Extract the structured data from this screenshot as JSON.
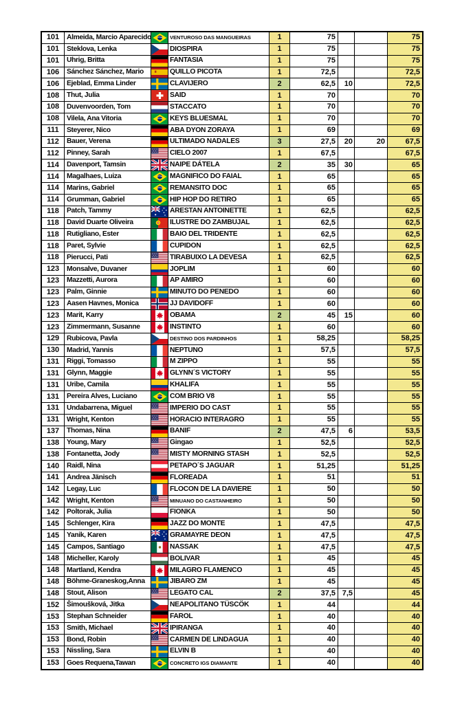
{
  "colors": {
    "tests_single_bg": "#F3E48F",
    "tests_multi_bg": "#C9D795",
    "total_bg": "#F3E88F",
    "border": "#000000",
    "text": "#0a0a0a",
    "page_bg": "#ffffff"
  },
  "table": {
    "rows": [
      {
        "rank": "101",
        "name": "Almeida, Marcio Aparecido",
        "country": "bra",
        "horse": "VENTUROSO DAS MANGUEIRAS",
        "tests": "1",
        "score": "75",
        "b1": "",
        "b2": "",
        "total": "75"
      },
      {
        "rank": "101",
        "name": "Steklova, Lenka",
        "country": "cze",
        "horse": "DIOSPIRA",
        "tests": "1",
        "score": "75",
        "b1": "",
        "b2": "",
        "total": "75"
      },
      {
        "rank": "101",
        "name": "Uhrig, Britta",
        "country": "ger",
        "horse": "FANTASIA",
        "tests": "1",
        "score": "75",
        "b1": "",
        "b2": "",
        "total": "75"
      },
      {
        "rank": "106",
        "name": "Sánchez Sánchez, Mario",
        "country": "esp",
        "horse": "QUILLO PICOTA",
        "tests": "1",
        "score": "72,5",
        "b1": "",
        "b2": "",
        "total": "72,5"
      },
      {
        "rank": "106",
        "name": "Ejeblad, Emma Linder",
        "country": "swe",
        "horse": "CLAVIJERO",
        "tests": "2",
        "score": "62,5",
        "b1": "10",
        "b2": "",
        "total": "72,5"
      },
      {
        "rank": "108",
        "name": "Thut, Julia",
        "country": "sui",
        "horse": "SAID",
        "tests": "1",
        "score": "70",
        "b1": "",
        "b2": "",
        "total": "70"
      },
      {
        "rank": "108",
        "name": "Duvenvoorden, Tom",
        "country": "ned",
        "horse": "STACCATO",
        "tests": "1",
        "score": "70",
        "b1": "",
        "b2": "",
        "total": "70"
      },
      {
        "rank": "108",
        "name": "Vilela, Ana Vitoria",
        "country": "bra",
        "horse": "KEYS BLUESMAL",
        "tests": "1",
        "score": "70",
        "b1": "",
        "b2": "",
        "total": "70"
      },
      {
        "rank": "111",
        "name": "Steyerer, Nico",
        "country": "ger",
        "horse": "ABA DYON ZORAYA",
        "tests": "1",
        "score": "69",
        "b1": "",
        "b2": "",
        "total": "69"
      },
      {
        "rank": "112",
        "name": "Bauer, Verena",
        "country": "ger",
        "horse": "ULTIMADO NADALES",
        "tests": "3",
        "score": "27,5",
        "b1": "20",
        "b2": "20",
        "total": "67,5"
      },
      {
        "rank": "112",
        "name": "Pinney, Sarah",
        "country": "usa",
        "horse": "CIELO 2007",
        "tests": "1",
        "score": "67,5",
        "b1": "",
        "b2": "",
        "total": "67,5"
      },
      {
        "rank": "114",
        "name": "Davenport, Tamsin",
        "country": "gbr",
        "horse": "NAIPE DÁTELA",
        "tests": "2",
        "score": "35",
        "b1": "30",
        "b2": "",
        "total": "65"
      },
      {
        "rank": "114",
        "name": "Magalhaes, Luiza",
        "country": "bra",
        "horse": "MAGNIFICO DO FAIAL",
        "tests": "1",
        "score": "65",
        "b1": "",
        "b2": "",
        "total": "65"
      },
      {
        "rank": "114",
        "name": "Marins, Gabriel",
        "country": "bra",
        "horse": "REMANSITO DOC",
        "tests": "1",
        "score": "65",
        "b1": "",
        "b2": "",
        "total": "65"
      },
      {
        "rank": "114",
        "name": "Grumman, Gabriel",
        "country": "bra",
        "horse": "HIP HOP DO RETIRO",
        "tests": "1",
        "score": "65",
        "b1": "",
        "b2": "",
        "total": "65"
      },
      {
        "rank": "118",
        "name": "Patch, Tammy",
        "country": "aus",
        "horse": "ARESTAN ANTOINETTE",
        "tests": "1",
        "score": "62,5",
        "b1": "",
        "b2": "",
        "total": "62,5"
      },
      {
        "rank": "118",
        "name": "David Duarte Oliveira",
        "country": "por",
        "horse": "ILUSTRE DO ZAMBUJAL",
        "tests": "1",
        "score": "62,5",
        "b1": "",
        "b2": "",
        "total": "62,5"
      },
      {
        "rank": "118",
        "name": "Rutigliano, Ester",
        "country": "ita",
        "horse": "BAIO DEL TRIDENTE",
        "tests": "1",
        "score": "62,5",
        "b1": "",
        "b2": "",
        "total": "62,5"
      },
      {
        "rank": "118",
        "name": "Paret, Sylvie",
        "country": "fra",
        "horse": "CUPIDON",
        "tests": "1",
        "score": "62,5",
        "b1": "",
        "b2": "",
        "total": "62,5"
      },
      {
        "rank": "118",
        "name": "Pierucci, Pati",
        "country": "usa",
        "horse": "TIRABUIXO LA DEVESA",
        "tests": "1",
        "score": "62,5",
        "b1": "",
        "b2": "",
        "total": "62,5"
      },
      {
        "rank": "123",
        "name": "Monsalve, Duvaner",
        "country": "col",
        "horse": "JOPLIM",
        "tests": "1",
        "score": "60",
        "b1": "",
        "b2": "",
        "total": "60"
      },
      {
        "rank": "123",
        "name": "Mazzetti, Aurora",
        "country": "ita",
        "horse": "AP AMIRO",
        "tests": "1",
        "score": "60",
        "b1": "",
        "b2": "",
        "total": "60"
      },
      {
        "rank": "123",
        "name": "Palm, Ginnie",
        "country": "swe",
        "horse": "MINUTO DO PENEDO",
        "tests": "1",
        "score": "60",
        "b1": "",
        "b2": "",
        "total": "60"
      },
      {
        "rank": "123",
        "name": "Aasen Havnes, Monica",
        "country": "nor",
        "horse": "JJ DAVIDOFF",
        "tests": "1",
        "score": "60",
        "b1": "",
        "b2": "",
        "total": "60"
      },
      {
        "rank": "123",
        "name": "Marit, Karry",
        "country": "can",
        "horse": "OBAMA",
        "tests": "2",
        "score": "45",
        "b1": "15",
        "b2": "",
        "total": "60"
      },
      {
        "rank": "123",
        "name": "Zimmermann, Susanne",
        "country": "can",
        "horse": "INSTINTO",
        "tests": "1",
        "score": "60",
        "b1": "",
        "b2": "",
        "total": "60"
      },
      {
        "rank": "129",
        "name": "Rubicova, Pavla",
        "country": "cze",
        "horse": "DESTINO DOS PARDINHOS",
        "tests": "1",
        "score": "58,25",
        "b1": "",
        "b2": "",
        "total": "58,25"
      },
      {
        "rank": "130",
        "name": "Madrid, Yannis",
        "country": "fra",
        "horse": "NEPTUNO",
        "tests": "1",
        "score": "57,5",
        "b1": "",
        "b2": "",
        "total": "57,5"
      },
      {
        "rank": "131",
        "name": "Riggi, Tomasso",
        "country": "ita",
        "horse": "M ZIPPO",
        "tests": "1",
        "score": "55",
        "b1": "",
        "b2": "",
        "total": "55"
      },
      {
        "rank": "131",
        "name": "Glynn, Maggie",
        "country": "can",
        "horse": "GLYNN´S VICTORY",
        "tests": "1",
        "score": "55",
        "b1": "",
        "b2": "",
        "total": "55"
      },
      {
        "rank": "131",
        "name": "Uribe, Camila",
        "country": "col",
        "horse": "KHALIFA",
        "tests": "1",
        "score": "55",
        "b1": "",
        "b2": "",
        "total": "55"
      },
      {
        "rank": "131",
        "name": "Pereira Alves, Luciano",
        "country": "bra",
        "horse": "COM BRIO V8",
        "tests": "1",
        "score": "55",
        "b1": "",
        "b2": "",
        "total": "55"
      },
      {
        "rank": "131",
        "name": "Undabarrena, Miguel",
        "country": "usa",
        "horse": "IMPERIO DO CAST",
        "tests": "1",
        "score": "55",
        "b1": "",
        "b2": "",
        "total": "55"
      },
      {
        "rank": "131",
        "name": "Wright, Kenton",
        "country": "usa",
        "horse": "HORACIO INTERAGRO",
        "tests": "1",
        "score": "55",
        "b1": "",
        "b2": "",
        "total": "55"
      },
      {
        "rank": "137",
        "name": "Thomas, Nina",
        "country": "ger",
        "horse": "BANIF",
        "tests": "2",
        "score": "47,5",
        "b1": "6",
        "b2": "",
        "total": "53,5"
      },
      {
        "rank": "138",
        "name": "Young, Mary",
        "country": "usa",
        "horse": "Gingao",
        "tests": "1",
        "score": "52,5",
        "b1": "",
        "b2": "",
        "total": "52,5"
      },
      {
        "rank": "138",
        "name": "Fontanetta, Jody",
        "country": "usa",
        "horse": "MISTY MORNING STASH",
        "tests": "1",
        "score": "52,5",
        "b1": "",
        "b2": "",
        "total": "52,5"
      },
      {
        "rank": "140",
        "name": "Raidl, Nina",
        "country": "aut",
        "horse": "PETAPO´S JAGUAR",
        "tests": "1",
        "score": "51,25",
        "b1": "",
        "b2": "",
        "total": "51,25"
      },
      {
        "rank": "141",
        "name": "Andrea Jänisch",
        "country": "ger",
        "horse": "FLOREADA",
        "tests": "1",
        "score": "51",
        "b1": "",
        "b2": "",
        "total": "51"
      },
      {
        "rank": "142",
        "name": "Legay, Luc",
        "country": "fra",
        "horse": "FLOCON DE LA DAVIERE",
        "tests": "1",
        "score": "50",
        "b1": "",
        "b2": "",
        "total": "50"
      },
      {
        "rank": "142",
        "name": "Wright, Kenton",
        "country": "usa",
        "horse": "MINUANO DO CASTANHEIRO",
        "tests": "1",
        "score": "50",
        "b1": "",
        "b2": "",
        "total": "50"
      },
      {
        "rank": "142",
        "name": "Poltorak, Julia",
        "country": "pol",
        "horse": "FIONKA",
        "tests": "1",
        "score": "50",
        "b1": "",
        "b2": "",
        "total": "50"
      },
      {
        "rank": "145",
        "name": "Schlenger, Kira",
        "country": "ger",
        "horse": "JAZZ DO MONTE",
        "tests": "1",
        "score": "47,5",
        "b1": "",
        "b2": "",
        "total": "47,5"
      },
      {
        "rank": "145",
        "name": "Yanik, Karen",
        "country": "aus",
        "horse": "GRAMAYRE DEON",
        "tests": "1",
        "score": "47,5",
        "b1": "",
        "b2": "",
        "total": "47,5"
      },
      {
        "rank": "145",
        "name": "Campos, Santiago",
        "country": "mex",
        "horse": "NASSAK",
        "tests": "1",
        "score": "47,5",
        "b1": "",
        "b2": "",
        "total": "47,5"
      },
      {
        "rank": "148",
        "name": "Micheller, Karoly",
        "country": "hun",
        "horse": "BOLIVAR",
        "tests": "1",
        "score": "45",
        "b1": "",
        "b2": "",
        "total": "45"
      },
      {
        "rank": "148",
        "name": "Martland, Kendra",
        "country": "can",
        "horse": "MILAGRO FLAMENCO",
        "tests": "1",
        "score": "45",
        "b1": "",
        "b2": "",
        "total": "45"
      },
      {
        "rank": "148",
        "name": "Böhme-Graneskog,Anna",
        "country": "swe",
        "horse": "JIBARO ZM",
        "tests": "1",
        "score": "45",
        "b1": "",
        "b2": "",
        "total": "45"
      },
      {
        "rank": "148",
        "name": "Stout, Alison",
        "country": "usa",
        "horse": "LEGATO CAL",
        "tests": "2",
        "score": "37,5",
        "b1": "7,5",
        "b2": "",
        "total": "45"
      },
      {
        "rank": "152",
        "name": "Šimoušková, Jitka",
        "country": "cze",
        "horse": "NEAPOLITANO TÜSCÖK",
        "tests": "1",
        "score": "44",
        "b1": "",
        "b2": "",
        "total": "44"
      },
      {
        "rank": "153",
        "name": "Stephan Schneider",
        "country": "ger",
        "horse": "FAROL",
        "tests": "1",
        "score": "40",
        "b1": "",
        "b2": "",
        "total": "40"
      },
      {
        "rank": "153",
        "name": "Smith, Michael",
        "country": "gbr",
        "horse": "IPIRANGA",
        "tests": "1",
        "score": "40",
        "b1": "",
        "b2": "",
        "total": "40"
      },
      {
        "rank": "153",
        "name": "Bond, Robin",
        "country": "usa",
        "horse": "CARMEN DE LINDAGUA",
        "tests": "1",
        "score": "40",
        "b1": "",
        "b2": "",
        "total": "40"
      },
      {
        "rank": "153",
        "name": "Nissling, Sara",
        "country": "swe",
        "horse": "ELVIN B",
        "tests": "1",
        "score": "40",
        "b1": "",
        "b2": "",
        "total": "40"
      },
      {
        "rank": "153",
        "name": "Goes Requena,Tawan",
        "country": "bra",
        "horse": "CONCRETO IGS DIAMANTE",
        "tests": "1",
        "score": "40",
        "b1": "",
        "b2": "",
        "total": "40"
      }
    ]
  }
}
